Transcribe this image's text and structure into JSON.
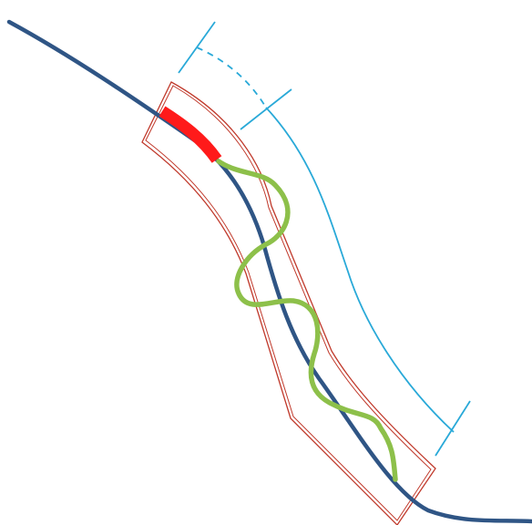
{
  "diagram": {
    "colors": {
      "background": "#ffffff",
      "main_line": "#2f5585",
      "tube_outline": "#c0392b",
      "red_segment": "#ff1a1a",
      "coil": "#8dc04a",
      "dimension": "#29a9d8"
    }
  }
}
